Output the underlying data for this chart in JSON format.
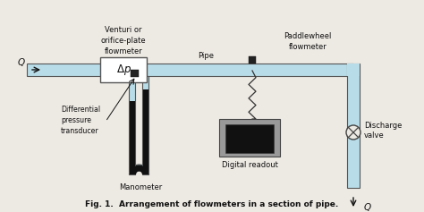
{
  "background_color": "#ede9e3",
  "pipe_color": "#b8dce8",
  "pipe_border": "#555555",
  "venturi_box_color": "#ffffff",
  "venturi_box_border": "#555555",
  "manometer_tube_color": "#b8dce8",
  "manometer_fluid_color": "#111111",
  "digital_box_color": "#999999",
  "digital_screen_color": "#111111",
  "text_color": "#111111",
  "label_caption": "Fig. 1.  Arrangement of flowmeters in a section of pipe.",
  "label_venturi": "Venturi or\norifice-plate\nflowmeter",
  "label_pipe": "Pipe",
  "label_paddle": "Paddlewheel\nflowmeter",
  "label_diff": "Differential\npressure\ntransducer",
  "label_manometer": "Manometer",
  "label_digital": "Digital readout",
  "label_discharge": "Discharge\nvalve"
}
